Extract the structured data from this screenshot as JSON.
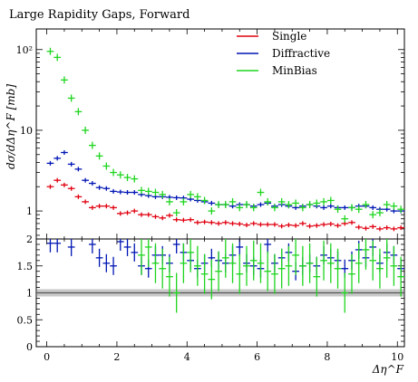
{
  "chart_data": {
    "type": "scatter",
    "title": "Large Rapidity Gaps, Forward",
    "xlabel": "Δη^F",
    "ylabel": "dσ/dΔη^F [mb]",
    "xlim": [
      -0.3,
      10.2
    ],
    "ylim_main": [
      0.45,
      180
    ],
    "yscale_main": "log",
    "ylim_ratio": [
      0,
      2
    ],
    "legend_position": "top-right",
    "x_tick_labels": [
      "0",
      "2",
      "4",
      "6",
      "8",
      "10"
    ],
    "y_tick_labels_main": [
      "1",
      "10",
      "10²"
    ],
    "y_tick_labels_ratio": [
      "0",
      "0.5",
      "1",
      "1.5",
      "2"
    ],
    "series": [
      {
        "name": "Single",
        "color": "#e0000f",
        "x": [
          0.1,
          0.3,
          0.5,
          0.7,
          0.9,
          1.1,
          1.3,
          1.5,
          1.7,
          1.9,
          2.1,
          2.3,
          2.5,
          2.7,
          2.9,
          3.1,
          3.3,
          3.5,
          3.7,
          3.9,
          4.1,
          4.3,
          4.5,
          4.7,
          4.9,
          5.1,
          5.3,
          5.5,
          5.7,
          5.9,
          6.1,
          6.3,
          6.5,
          6.7,
          6.9,
          7.1,
          7.3,
          7.5,
          7.7,
          7.9,
          8.1,
          8.3,
          8.5,
          8.7,
          8.9,
          9.1,
          9.3,
          9.5,
          9.7,
          9.9,
          10.1
        ],
        "values": [
          2.0,
          2.4,
          2.1,
          1.9,
          1.5,
          1.3,
          1.1,
          1.15,
          1.15,
          1.1,
          0.93,
          0.95,
          1.0,
          0.9,
          0.9,
          0.85,
          0.82,
          0.88,
          0.78,
          0.77,
          0.78,
          0.72,
          0.73,
          0.72,
          0.7,
          0.72,
          0.7,
          0.69,
          0.67,
          0.7,
          0.68,
          0.68,
          0.68,
          0.65,
          0.67,
          0.66,
          0.7,
          0.65,
          0.66,
          0.68,
          0.69,
          0.66,
          0.7,
          0.72,
          0.63,
          0.61,
          0.64,
          0.6,
          0.62,
          0.6,
          0.62
        ]
      },
      {
        "name": "Diffractive",
        "color": "#0015b4",
        "x": [
          0.1,
          0.3,
          0.5,
          0.7,
          0.9,
          1.1,
          1.3,
          1.5,
          1.7,
          1.9,
          2.1,
          2.3,
          2.5,
          2.7,
          2.9,
          3.1,
          3.3,
          3.5,
          3.7,
          3.9,
          4.1,
          4.3,
          4.5,
          4.7,
          4.9,
          5.1,
          5.3,
          5.5,
          5.7,
          5.9,
          6.1,
          6.3,
          6.5,
          6.7,
          6.9,
          7.1,
          7.3,
          7.5,
          7.7,
          7.9,
          8.1,
          8.3,
          8.5,
          8.7,
          8.9,
          9.1,
          9.3,
          9.5,
          9.7,
          9.9,
          10.1
        ],
        "values": [
          3.9,
          4.5,
          5.3,
          3.8,
          3.3,
          2.4,
          2.2,
          1.95,
          1.9,
          1.75,
          1.72,
          1.7,
          1.7,
          1.6,
          1.55,
          1.5,
          1.5,
          1.48,
          1.46,
          1.45,
          1.4,
          1.35,
          1.3,
          1.25,
          1.2,
          1.2,
          1.15,
          1.2,
          1.2,
          1.15,
          1.2,
          1.25,
          1.15,
          1.2,
          1.15,
          1.1,
          1.15,
          1.2,
          1.15,
          1.1,
          1.15,
          1.1,
          1.1,
          1.1,
          1.15,
          1.15,
          1.1,
          1.05,
          1.05,
          1.0,
          1.0
        ]
      },
      {
        "name": "MinBias",
        "color": "#1ed51e",
        "x": [
          0.1,
          0.3,
          0.5,
          0.7,
          0.9,
          1.1,
          1.3,
          1.5,
          1.7,
          1.9,
          2.1,
          2.3,
          2.5,
          2.7,
          2.9,
          3.1,
          3.3,
          3.5,
          3.7,
          3.9,
          4.1,
          4.3,
          4.5,
          4.7,
          4.9,
          5.1,
          5.3,
          5.5,
          5.7,
          5.9,
          6.1,
          6.3,
          6.5,
          6.7,
          6.9,
          7.1,
          7.3,
          7.5,
          7.7,
          7.9,
          8.1,
          8.3,
          8.5,
          8.7,
          8.9,
          9.1,
          9.3,
          9.5,
          9.7,
          9.9,
          10.1
        ],
        "values": [
          95,
          80,
          42,
          25,
          17,
          10,
          6.5,
          4.8,
          3.6,
          3.0,
          2.8,
          2.6,
          2.5,
          1.8,
          1.75,
          1.7,
          1.6,
          1.3,
          0.95,
          1.3,
          1.6,
          1.5,
          1.35,
          1.0,
          1.2,
          1.2,
          1.3,
          1.1,
          1.2,
          1.1,
          1.7,
          1.3,
          1.1,
          1.3,
          1.2,
          1.25,
          1.1,
          1.2,
          1.25,
          1.3,
          1.35,
          1.05,
          0.8,
          1.1,
          1.05,
          1.2,
          0.9,
          0.95,
          1.2,
          1.15,
          1.05
        ]
      }
    ],
    "ratio_series": [
      {
        "name": "Diffractive",
        "color": "#0015b4",
        "x": [
          0.1,
          0.3,
          0.7,
          1.3,
          1.5,
          1.7,
          1.9,
          2.1,
          2.3,
          2.5,
          2.7,
          2.9,
          3.1,
          3.3,
          3.5,
          3.7,
          3.9,
          4.1,
          4.3,
          4.5,
          4.7,
          4.9,
          5.1,
          5.3,
          5.5,
          5.7,
          5.9,
          6.1,
          6.3,
          6.5,
          6.7,
          6.9,
          7.1,
          7.3,
          7.5,
          7.7,
          7.9,
          8.1,
          8.3,
          8.5,
          8.7,
          8.9,
          9.1,
          9.3,
          9.5,
          9.7,
          9.9,
          10.1
        ],
        "values": [
          1.92,
          1.92,
          1.85,
          1.9,
          1.65,
          1.55,
          1.5,
          1.95,
          1.85,
          1.75,
          1.5,
          1.45,
          1.7,
          1.7,
          1.55,
          1.9,
          1.75,
          1.6,
          1.45,
          1.55,
          1.65,
          1.6,
          1.55,
          1.7,
          1.85,
          1.55,
          1.5,
          1.45,
          1.9,
          1.55,
          1.65,
          1.75,
          1.4,
          1.5,
          1.55,
          1.5,
          1.7,
          1.65,
          1.6,
          1.45,
          1.6,
          1.8,
          1.65,
          1.85,
          1.55,
          1.75,
          1.7,
          1.45
        ]
      },
      {
        "name": "MinBias",
        "color": "#1ed51e",
        "x": [
          2.7,
          2.9,
          3.1,
          3.3,
          3.5,
          3.7,
          3.9,
          4.1,
          4.3,
          4.5,
          4.7,
          4.9,
          5.1,
          5.3,
          5.5,
          5.7,
          5.9,
          6.1,
          6.3,
          6.5,
          6.7,
          6.9,
          7.1,
          7.3,
          7.5,
          7.7,
          7.9,
          8.1,
          8.3,
          8.5,
          8.7,
          8.9,
          9.1,
          9.3,
          9.5,
          9.7,
          9.9,
          10.1
        ],
        "values": [
          1.7,
          1.85,
          1.55,
          1.45,
          1.3,
          1.0,
          1.55,
          1.75,
          1.5,
          1.35,
          1.25,
          1.4,
          1.65,
          1.55,
          1.35,
          1.5,
          1.6,
          1.55,
          1.4,
          1.35,
          1.45,
          1.5,
          1.7,
          1.5,
          1.55,
          1.3,
          1.6,
          1.55,
          1.45,
          1.0,
          1.35,
          1.55,
          1.8,
          1.6,
          1.45,
          1.65,
          1.5,
          1.3
        ]
      }
    ],
    "reference_band": {
      "value": 1.0,
      "color": "#aaaaaa"
    }
  }
}
